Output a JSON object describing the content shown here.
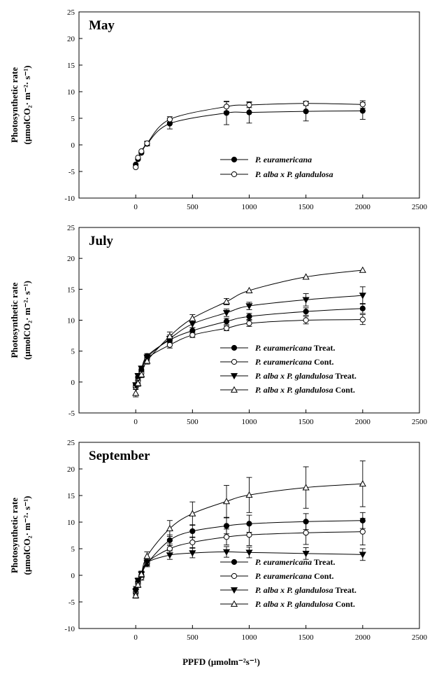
{
  "chart_data": [
    {
      "type": "line",
      "title": "May",
      "ylabel_line1": "Photosynthetic rate",
      "ylabel_line2": "(μmolCO₂· m⁻²· s⁻¹)",
      "xlim": [
        -500,
        2500
      ],
      "ylim": [
        -10,
        25
      ],
      "xticks": [
        0,
        500,
        1000,
        1500,
        2000,
        2500
      ],
      "yticks": [
        -10,
        -5,
        0,
        5,
        10,
        15,
        20,
        25
      ],
      "legend_position": "center-right",
      "series": [
        {
          "name_italic": "P. euramericana",
          "name_suffix": "",
          "marker": "circle-filled",
          "points": [
            [
              0,
              -3.7
            ],
            [
              20,
              -2.7
            ],
            [
              50,
              -1.5
            ],
            [
              100,
              0.2
            ],
            [
              300,
              4.0
            ],
            [
              800,
              6.0
            ],
            [
              1000,
              6.1
            ],
            [
              1500,
              6.3
            ],
            [
              2000,
              6.4
            ]
          ],
          "err": [
            0.3,
            0.3,
            0.3,
            0.4,
            1.0,
            2.2,
            2.0,
            1.8,
            1.6
          ]
        },
        {
          "name_italic": "P. alba x P. glandulosa",
          "name_suffix": "",
          "marker": "circle-open",
          "points": [
            [
              0,
              -4.2
            ],
            [
              20,
              -2.4
            ],
            [
              50,
              -1.2
            ],
            [
              100,
              0.3
            ],
            [
              300,
              4.8
            ],
            [
              800,
              7.2
            ],
            [
              1000,
              7.5
            ],
            [
              1500,
              7.8
            ],
            [
              2000,
              7.6
            ]
          ],
          "err": [
            0.3,
            0.3,
            0.3,
            0.4,
            0.5,
            0.9,
            0.5,
            0.4,
            0.7
          ]
        }
      ]
    },
    {
      "type": "line",
      "title": "July",
      "ylabel_line1": "Photosynthetic rate",
      "ylabel_line2": "(μmolCO₂· m⁻²· s⁻¹)",
      "xlim": [
        -500,
        2500
      ],
      "ylim": [
        -5,
        25
      ],
      "xticks": [
        0,
        500,
        1000,
        1500,
        2000,
        2500
      ],
      "yticks": [
        -5,
        0,
        5,
        10,
        15,
        20,
        25
      ],
      "legend_position": "bottom-right",
      "series": [
        {
          "name_italic": "P. euramericana",
          "name_suffix": " Treat.",
          "marker": "circle-filled",
          "points": [
            [
              0,
              -0.6
            ],
            [
              20,
              0.8
            ],
            [
              50,
              2.0
            ],
            [
              100,
              4.2
            ],
            [
              300,
              6.8
            ],
            [
              500,
              8.3
            ],
            [
              800,
              9.8
            ],
            [
              1000,
              10.6
            ],
            [
              1500,
              11.4
            ],
            [
              2000,
              11.9
            ]
          ],
          "err": [
            0.4,
            0.4,
            0.4,
            0.4,
            0.6,
            0.5,
            0.5,
            0.5,
            0.6,
            0.8
          ]
        },
        {
          "name_italic": "P. euramericana",
          "name_suffix": " Cont.",
          "marker": "circle-open",
          "points": [
            [
              0,
              -0.8
            ],
            [
              20,
              0.2
            ],
            [
              50,
              1.4
            ],
            [
              100,
              3.8
            ],
            [
              300,
              6.0
            ],
            [
              500,
              7.6
            ],
            [
              800,
              8.7
            ],
            [
              1000,
              9.5
            ],
            [
              1500,
              10.0
            ],
            [
              2000,
              10.1
            ]
          ],
          "err": [
            0.4,
            0.4,
            0.4,
            0.4,
            0.5,
            0.4,
            0.4,
            0.5,
            0.6,
            0.8
          ]
        },
        {
          "name_italic": "P. alba x P. glandulosa",
          "name_suffix": " Treat.",
          "marker": "triangle-down-filled",
          "points": [
            [
              0,
              -0.5
            ],
            [
              20,
              1.0
            ],
            [
              50,
              2.2
            ],
            [
              100,
              4.0
            ],
            [
              300,
              7.0
            ],
            [
              500,
              9.4
            ],
            [
              800,
              11.2
            ],
            [
              1000,
              12.3
            ],
            [
              1500,
              13.3
            ],
            [
              2000,
              14.0
            ]
          ],
          "err": [
            0.4,
            0.4,
            0.4,
            0.4,
            0.6,
            0.6,
            0.6,
            0.6,
            1.0,
            1.4
          ]
        },
        {
          "name_italic": "P. alba x P. glandulosa",
          "name_suffix": " Cont.",
          "marker": "triangle-up-open",
          "points": [
            [
              0,
              -1.8
            ],
            [
              20,
              -0.2
            ],
            [
              50,
              1.2
            ],
            [
              100,
              3.4
            ],
            [
              300,
              7.4
            ],
            [
              500,
              10.3
            ],
            [
              800,
              13.0
            ],
            [
              1000,
              14.8
            ],
            [
              1500,
              17.0
            ],
            [
              2000,
              18.1
            ]
          ],
          "err": [
            0.6,
            0.5,
            0.5,
            0.5,
            0.7,
            0.6,
            0.5,
            0.3,
            0.3,
            0.3
          ]
        }
      ]
    },
    {
      "type": "line",
      "title": "September",
      "ylabel_line1": "Photosynthetic rate",
      "ylabel_line2": "(μmolCO₂· m⁻²· s⁻¹)",
      "xlabel": "PPFD (μmolm⁻²s⁻¹)",
      "xlim": [
        -500,
        2500
      ],
      "ylim": [
        -10,
        25
      ],
      "xticks": [
        0,
        500,
        1000,
        1500,
        2000,
        2500
      ],
      "yticks": [
        -10,
        -5,
        0,
        5,
        10,
        15,
        20,
        25
      ],
      "legend_position": "bottom-right",
      "series": [
        {
          "name_italic": "P. euramericana",
          "name_suffix": " Treat.",
          "marker": "circle-filled",
          "points": [
            [
              0,
              -2.6
            ],
            [
              20,
              -1.2
            ],
            [
              50,
              0.0
            ],
            [
              100,
              2.2
            ],
            [
              300,
              6.6
            ],
            [
              500,
              8.3
            ],
            [
              800,
              9.3
            ],
            [
              1000,
              9.7
            ],
            [
              1500,
              10.1
            ],
            [
              2000,
              10.3
            ]
          ],
          "err": [
            0.5,
            0.5,
            0.5,
            0.6,
            1.0,
            1.2,
            1.5,
            1.6,
            1.5,
            1.5
          ]
        },
        {
          "name_italic": "P. euramericana",
          "name_suffix": " Cont.",
          "marker": "circle-open",
          "points": [
            [
              0,
              -3.2
            ],
            [
              20,
              -1.6
            ],
            [
              50,
              -0.4
            ],
            [
              100,
              2.4
            ],
            [
              300,
              5.0
            ],
            [
              500,
              6.2
            ],
            [
              800,
              7.2
            ],
            [
              1000,
              7.6
            ],
            [
              1500,
              8.0
            ],
            [
              2000,
              8.2
            ]
          ],
          "err": [
            0.5,
            0.5,
            0.5,
            0.6,
            0.9,
            1.0,
            1.5,
            2.0,
            2.2,
            2.5
          ]
        },
        {
          "name_italic": "P. alba x P. glandulosa",
          "name_suffix": " Treat.",
          "marker": "triangle-down-filled",
          "points": [
            [
              0,
              -3.0
            ],
            [
              20,
              -1.0
            ],
            [
              50,
              0.2
            ],
            [
              100,
              2.4
            ],
            [
              300,
              3.8
            ],
            [
              500,
              4.2
            ],
            [
              800,
              4.4
            ],
            [
              1000,
              4.3
            ],
            [
              1500,
              4.1
            ],
            [
              2000,
              3.9
            ]
          ],
          "err": [
            0.5,
            0.5,
            0.5,
            0.6,
            0.8,
            0.9,
            1.0,
            1.0,
            1.1,
            1.1
          ]
        },
        {
          "name_italic": "P. alba x P. glandulosa",
          "name_suffix": " Cont.",
          "marker": "triangle-up-open",
          "points": [
            [
              0,
              -3.8
            ],
            [
              20,
              -1.8
            ],
            [
              50,
              0.2
            ],
            [
              100,
              3.6
            ],
            [
              300,
              8.8
            ],
            [
              500,
              11.6
            ],
            [
              800,
              13.9
            ],
            [
              1000,
              15.1
            ],
            [
              1500,
              16.5
            ],
            [
              2000,
              17.2
            ]
          ],
          "err": [
            0.5,
            0.5,
            0.6,
            0.8,
            1.5,
            2.2,
            3.0,
            3.3,
            3.9,
            4.3
          ]
        }
      ]
    }
  ]
}
